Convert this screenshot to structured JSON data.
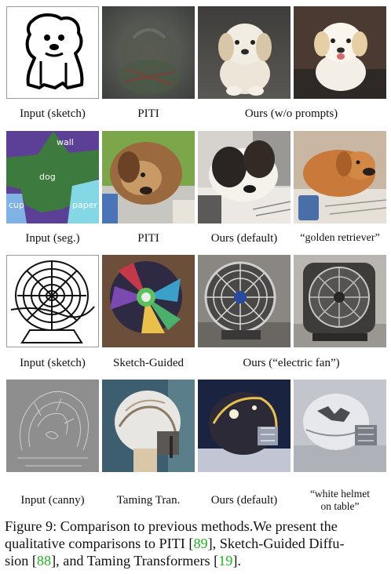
{
  "figure": {
    "rows": [
      {
        "labels": [
          "Input (sketch)",
          "PITI",
          "Ours (w/o prompts)"
        ]
      },
      {
        "labels": [
          "Input (seg.)",
          "PITI",
          "Ours (default)",
          "“golden retriever”"
        ],
        "seg_labels": [
          "wall",
          "dog",
          "cup",
          "paper"
        ]
      },
      {
        "labels": [
          "Input (sketch)",
          "Sketch-Guided",
          "Ours (“electric fan”)"
        ]
      },
      {
        "labels": [
          "Input (canny)",
          "Taming Tran.",
          "Ours (default)"
        ],
        "prompt_line1": "“white helmet",
        "prompt_line2": "on table”"
      }
    ]
  },
  "caption": {
    "line1": "Figure 9: Comparison to previous methods.We present the",
    "line2_text": "qualitative comparisons to PITI [",
    "ref_piti": "89",
    "line2_tail": "], Sketch-Guided Diffu-",
    "line3_text": "sion [",
    "ref_sketch": "88",
    "line3_mid": "], and Taming Transformers [",
    "ref_taming": "19",
    "line3_tail": "]."
  }
}
